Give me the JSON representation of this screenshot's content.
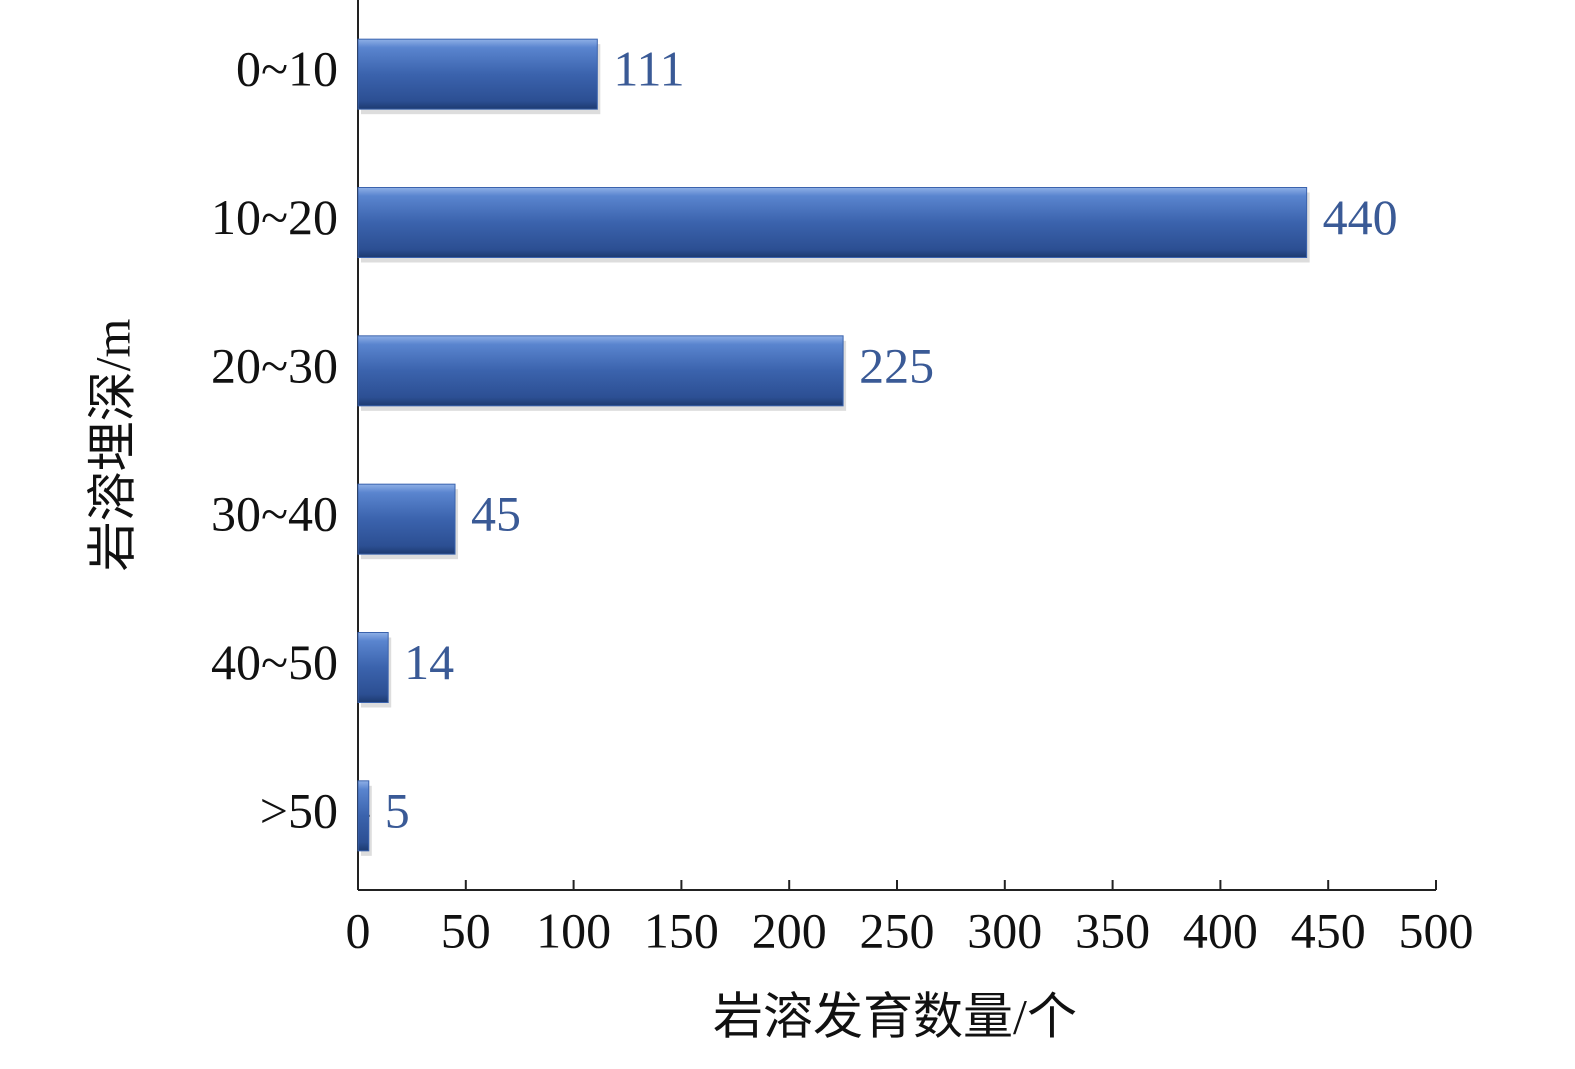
{
  "chart_data": {
    "type": "barh",
    "categories": [
      "0~10",
      "10~20",
      "20~30",
      "30~40",
      "40~50",
      ">50"
    ],
    "values": [
      111,
      440,
      225,
      45,
      14,
      5
    ],
    "color": "#3b63ad",
    "xlabel": "岩溶发育数量/个",
    "ylabel": "岩溶埋深/m",
    "xlim": [
      0,
      500
    ],
    "xticks": [
      0,
      50,
      100,
      150,
      200,
      250,
      300,
      350,
      400,
      450,
      500
    ],
    "grid": false
  }
}
